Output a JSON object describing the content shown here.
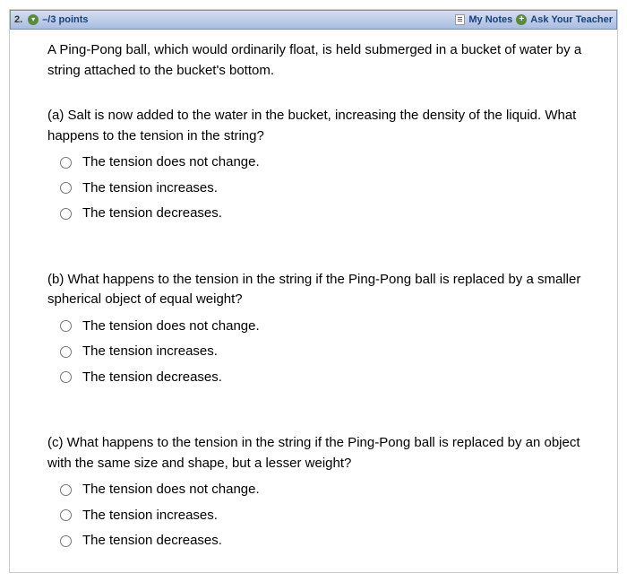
{
  "header": {
    "question_number": "2.",
    "points": "–/3 points",
    "my_notes": "My Notes",
    "ask_teacher": "Ask Your Teacher"
  },
  "problem": {
    "intro": "A Ping-Pong ball, which would ordinarily float, is held submerged in a bucket of water by a string attached to the bucket's bottom."
  },
  "parts": {
    "a": {
      "question": "(a) Salt is now added to the water in the bucket, increasing the density of the liquid. What happens to the tension in the string?",
      "options": [
        "The tension does not change.",
        "The tension increases.",
        "The tension decreases."
      ]
    },
    "b": {
      "question": "(b) What happens to the tension in the string if the Ping-Pong ball is replaced by a smaller spherical object of equal weight?",
      "options": [
        "The tension does not change.",
        "The tension increases.",
        "The tension decreases."
      ]
    },
    "c": {
      "question": "(c) What happens to the tension in the string if the Ping-Pong ball is replaced by an object with the same size and shape, but a lesser weight?",
      "options": [
        "The tension does not change.",
        "The tension increases.",
        "The tension decreases."
      ]
    }
  },
  "colors": {
    "header_gradient_top": "#d4dff0",
    "header_gradient_bottom": "#a8bde0",
    "header_border": "#7a8fb5",
    "link_color": "#1a3f7a",
    "icon_green": "#5a8a3a",
    "body_bg": "#ffffff",
    "text_color": "#000000"
  }
}
